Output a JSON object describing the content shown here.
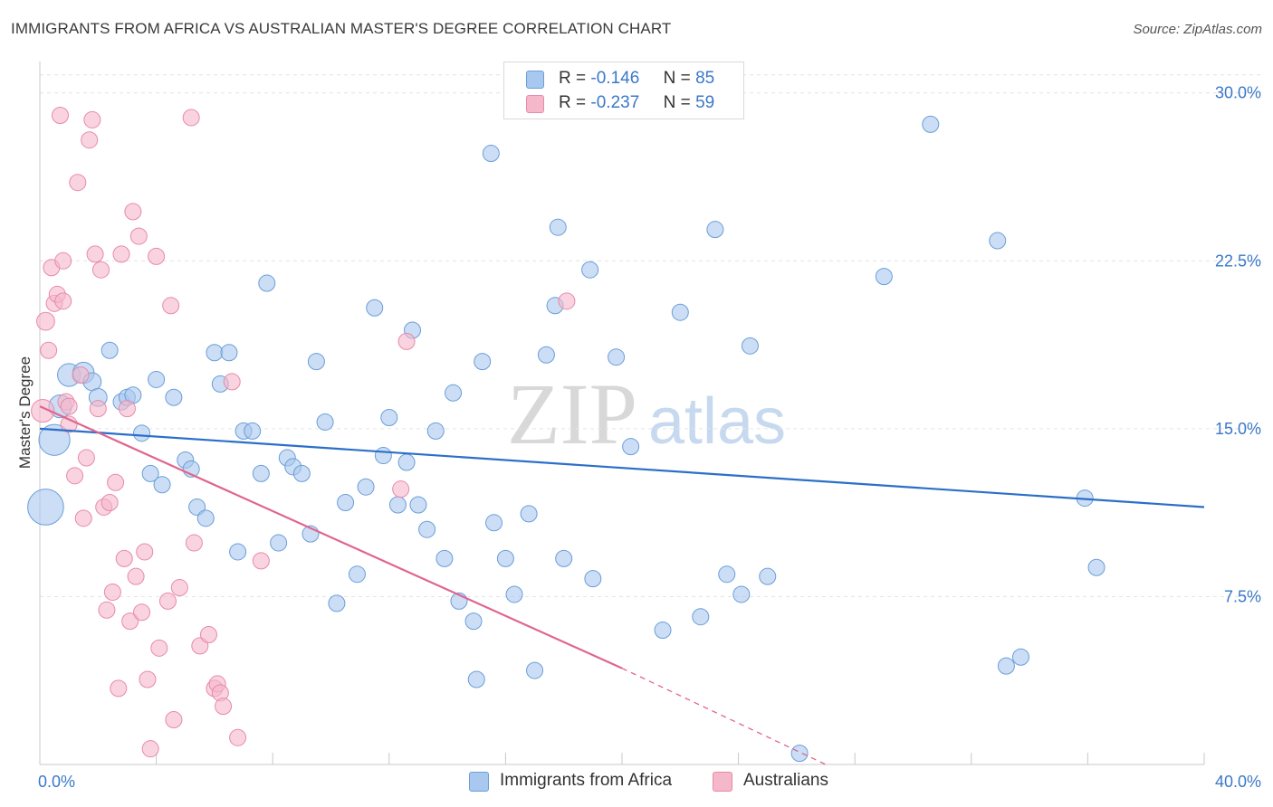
{
  "header": {
    "title": "IMMIGRANTS FROM AFRICA VS AUSTRALIAN MASTER'S DEGREE CORRELATION CHART",
    "source": "Source: ZipAtlas.com"
  },
  "watermark": {
    "zip": "ZIP",
    "atlas": "atlas"
  },
  "legend": {
    "series": [
      {
        "r_label": "R =",
        "r_value": "-0.146",
        "n_label": "N =",
        "n_value": "85",
        "color": "#a9c8ef",
        "stroke": "#6b9ed8"
      },
      {
        "r_label": "R =",
        "r_value": "-0.237",
        "n_label": "N =",
        "n_value": "59",
        "color": "#f5b8cb",
        "stroke": "#e88aa8"
      }
    ]
  },
  "bottom_legend": {
    "items": [
      {
        "label": "Immigrants from Africa",
        "color": "#a9c8ef",
        "stroke": "#6b9ed8"
      },
      {
        "label": "Australians",
        "color": "#f5b8cb",
        "stroke": "#e88aa8"
      }
    ]
  },
  "chart_data": {
    "type": "scatter",
    "title": "IMMIGRANTS FROM AFRICA VS AUSTRALIAN MASTER'S DEGREE CORRELATION CHART",
    "xlabel": "",
    "ylabel": "Master's Degree",
    "xlim": [
      0,
      40
    ],
    "ylim": [
      0,
      31
    ],
    "x_tick_labels": {
      "min": "0.0%",
      "max": "40.0%"
    },
    "y_ticks": [
      {
        "value": 7.5,
        "label": "7.5%"
      },
      {
        "value": 15.0,
        "label": "15.0%"
      },
      {
        "value": 22.5,
        "label": "22.5%"
      },
      {
        "value": 30.0,
        "label": "30.0%"
      }
    ],
    "grid": true,
    "series": [
      {
        "name": "Immigrants from Africa",
        "color": "#a9c8ef",
        "stroke": "#6b9ed8",
        "trend": {
          "x0": 0,
          "y0": 15.0,
          "x1": 40,
          "y1": 11.5,
          "color": "#2b6fc9"
        },
        "points": [
          [
            0.2,
            11.5,
            2.2
          ],
          [
            0.5,
            14.5,
            1.9
          ],
          [
            0.7,
            16.0,
            1.4
          ],
          [
            1.0,
            17.4,
            1.4
          ],
          [
            1.5,
            17.5,
            1.3
          ],
          [
            1.8,
            17.1,
            1.1
          ],
          [
            2.0,
            16.4,
            1.1
          ],
          [
            2.4,
            18.5,
            1.0
          ],
          [
            2.8,
            16.2,
            1.0
          ],
          [
            3.0,
            16.4,
            1.0
          ],
          [
            3.2,
            16.5,
            1.0
          ],
          [
            3.5,
            14.8,
            1.0
          ],
          [
            3.8,
            13.0,
            1.0
          ],
          [
            4.0,
            17.2,
            1.0
          ],
          [
            4.2,
            12.5,
            1.0
          ],
          [
            4.6,
            16.4,
            1.0
          ],
          [
            5.0,
            13.6,
            1.0
          ],
          [
            5.2,
            13.2,
            1.0
          ],
          [
            5.4,
            11.5,
            1.0
          ],
          [
            5.7,
            11.0,
            1.0
          ],
          [
            6.0,
            18.4,
            1.0
          ],
          [
            6.2,
            17.0,
            1.0
          ],
          [
            6.5,
            18.4,
            1.0
          ],
          [
            6.8,
            9.5,
            1.0
          ],
          [
            7.0,
            14.9,
            1.0
          ],
          [
            7.3,
            14.9,
            1.0
          ],
          [
            7.6,
            13.0,
            1.0
          ],
          [
            7.8,
            21.5,
            1.0
          ],
          [
            8.2,
            9.9,
            1.0
          ],
          [
            8.5,
            13.7,
            1.0
          ],
          [
            8.7,
            13.3,
            1.0
          ],
          [
            9.0,
            13.0,
            1.0
          ],
          [
            9.3,
            10.3,
            1.0
          ],
          [
            9.5,
            18.0,
            1.0
          ],
          [
            9.8,
            15.3,
            1.0
          ],
          [
            10.2,
            7.2,
            1.0
          ],
          [
            10.5,
            11.7,
            1.0
          ],
          [
            10.9,
            8.5,
            1.0
          ],
          [
            11.2,
            12.4,
            1.0
          ],
          [
            11.5,
            20.4,
            1.0
          ],
          [
            11.8,
            13.8,
            1.0
          ],
          [
            12.0,
            15.5,
            1.0
          ],
          [
            12.3,
            11.6,
            1.0
          ],
          [
            12.6,
            13.5,
            1.0
          ],
          [
            12.8,
            19.4,
            1.0
          ],
          [
            13.0,
            11.6,
            1.0
          ],
          [
            13.3,
            10.5,
            1.0
          ],
          [
            13.6,
            14.9,
            1.0
          ],
          [
            13.9,
            9.2,
            1.0
          ],
          [
            14.2,
            16.6,
            1.0
          ],
          [
            14.4,
            7.3,
            1.0
          ],
          [
            14.9,
            6.4,
            1.0
          ],
          [
            15.2,
            18.0,
            1.0
          ],
          [
            15.5,
            27.3,
            1.0
          ],
          [
            15.6,
            10.8,
            1.0
          ],
          [
            15.0,
            3.8,
            1.0
          ],
          [
            16.0,
            9.2,
            1.0
          ],
          [
            16.3,
            7.6,
            1.0
          ],
          [
            16.8,
            11.2,
            1.0
          ],
          [
            17.0,
            4.2,
            1.0
          ],
          [
            17.4,
            18.3,
            1.0
          ],
          [
            17.7,
            20.5,
            1.0
          ],
          [
            17.8,
            24.0,
            1.0
          ],
          [
            18.0,
            9.2,
            1.0
          ],
          [
            18.9,
            22.1,
            1.0
          ],
          [
            19.0,
            8.3,
            1.0
          ],
          [
            19.8,
            18.2,
            1.0
          ],
          [
            20.3,
            14.2,
            1.0
          ],
          [
            21.4,
            6.0,
            1.0
          ],
          [
            22.0,
            20.2,
            1.0
          ],
          [
            22.7,
            6.6,
            1.0
          ],
          [
            23.2,
            23.9,
            1.0
          ],
          [
            23.6,
            8.5,
            1.0
          ],
          [
            24.1,
            7.6,
            1.0
          ],
          [
            24.4,
            18.7,
            1.0
          ],
          [
            25.0,
            8.4,
            1.0
          ],
          [
            26.1,
            0.5,
            1.0
          ],
          [
            29.0,
            21.8,
            1.0
          ],
          [
            30.6,
            28.6,
            1.0
          ],
          [
            32.9,
            23.4,
            1.0
          ],
          [
            33.2,
            4.4,
            1.0
          ],
          [
            33.7,
            4.8,
            1.0
          ],
          [
            35.9,
            11.9,
            1.0
          ],
          [
            36.3,
            8.8,
            1.0
          ]
        ]
      },
      {
        "name": "Australians",
        "color": "#f5b8cb",
        "stroke": "#e88aa8",
        "trend": {
          "x0": 0,
          "y0": 16.0,
          "x1": 20.0,
          "y1": 4.3,
          "dash_to_x": 27.0,
          "dash_to_y": 0.0,
          "color": "#e0658f"
        },
        "points": [
          [
            0.1,
            15.8,
            1.4
          ],
          [
            0.2,
            19.8,
            1.1
          ],
          [
            0.3,
            18.5,
            1.0
          ],
          [
            0.4,
            22.2,
            1.0
          ],
          [
            0.5,
            20.6,
            1.0
          ],
          [
            0.6,
            21.0,
            1.0
          ],
          [
            0.7,
            29.0,
            1.0
          ],
          [
            0.8,
            20.7,
            1.0
          ],
          [
            0.8,
            22.5,
            1.0
          ],
          [
            0.9,
            16.2,
            1.0
          ],
          [
            1.0,
            16.0,
            1.0
          ],
          [
            1.0,
            15.2,
            1.0
          ],
          [
            1.2,
            12.9,
            1.0
          ],
          [
            1.3,
            26.0,
            1.0
          ],
          [
            1.4,
            17.4,
            1.0
          ],
          [
            1.5,
            11.0,
            1.0
          ],
          [
            1.6,
            13.7,
            1.0
          ],
          [
            1.7,
            27.9,
            1.0
          ],
          [
            1.8,
            28.8,
            1.0
          ],
          [
            1.9,
            22.8,
            1.0
          ],
          [
            2.0,
            15.9,
            1.0
          ],
          [
            2.1,
            22.1,
            1.0
          ],
          [
            2.2,
            11.5,
            1.0
          ],
          [
            2.3,
            6.9,
            1.0
          ],
          [
            2.4,
            11.7,
            1.0
          ],
          [
            2.5,
            7.7,
            1.0
          ],
          [
            2.6,
            12.6,
            1.0
          ],
          [
            2.7,
            3.4,
            1.0
          ],
          [
            2.8,
            22.8,
            1.0
          ],
          [
            2.9,
            9.2,
            1.0
          ],
          [
            3.0,
            15.9,
            1.0
          ],
          [
            3.1,
            6.4,
            1.0
          ],
          [
            3.2,
            24.7,
            1.0
          ],
          [
            3.3,
            8.4,
            1.0
          ],
          [
            3.4,
            23.6,
            1.0
          ],
          [
            3.5,
            6.8,
            1.0
          ],
          [
            3.6,
            9.5,
            1.0
          ],
          [
            3.7,
            3.8,
            1.0
          ],
          [
            3.8,
            0.7,
            1.0
          ],
          [
            4.0,
            22.7,
            1.0
          ],
          [
            4.1,
            5.2,
            1.0
          ],
          [
            4.4,
            7.3,
            1.0
          ],
          [
            4.5,
            20.5,
            1.0
          ],
          [
            4.6,
            2.0,
            1.0
          ],
          [
            4.8,
            7.9,
            1.0
          ],
          [
            5.2,
            28.9,
            1.0
          ],
          [
            5.3,
            9.9,
            1.0
          ],
          [
            5.5,
            5.3,
            1.0
          ],
          [
            5.8,
            5.8,
            1.0
          ],
          [
            6.0,
            3.4,
            1.0
          ],
          [
            6.1,
            3.6,
            1.0
          ],
          [
            6.2,
            3.2,
            1.0
          ],
          [
            6.3,
            2.6,
            1.0
          ],
          [
            6.6,
            17.1,
            1.0
          ],
          [
            6.8,
            1.2,
            1.0
          ],
          [
            7.6,
            9.1,
            1.0
          ],
          [
            12.4,
            12.3,
            1.0
          ],
          [
            12.6,
            18.9,
            1.0
          ],
          [
            18.1,
            20.7,
            1.0
          ]
        ]
      }
    ]
  }
}
